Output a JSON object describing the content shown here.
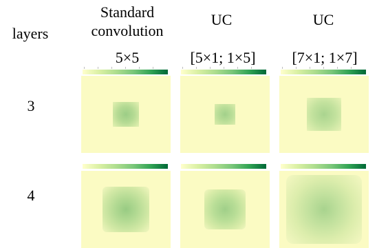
{
  "row_header": "layers",
  "columns": [
    {
      "title_line1": "Standard",
      "title_line2": "convolution",
      "kernel": "5×5"
    },
    {
      "title_line1": "UC",
      "title_line2": "",
      "kernel": "[5×1; 1×5]"
    },
    {
      "title_line1": "UC",
      "title_line2": "",
      "kernel": "[7×1; 1×7]"
    }
  ],
  "rows": [
    {
      "label": "3"
    },
    {
      "label": "4"
    }
  ],
  "colors": {
    "map_background": "#fbfbc3",
    "colormap_low": "#ffffcc",
    "colormap_high": "#006837"
  }
}
